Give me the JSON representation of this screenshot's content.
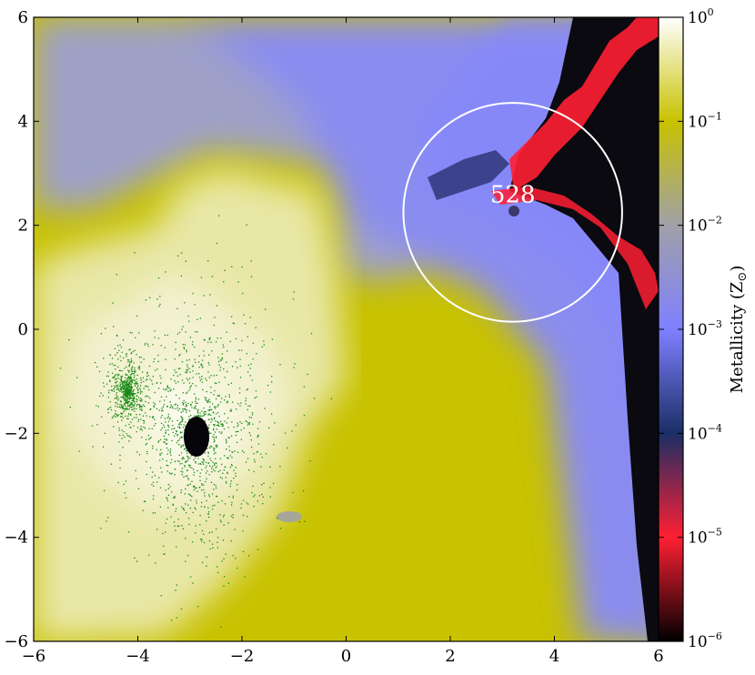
{
  "chart_data": {
    "type": "heatmap",
    "title": "",
    "xlabel": "",
    "ylabel": "",
    "xlim": [
      -6,
      6
    ],
    "ylim": [
      -6,
      6
    ],
    "x_ticks": [
      -6,
      -4,
      -2,
      0,
      2,
      4,
      6
    ],
    "y_ticks": [
      -6,
      -4,
      -2,
      0,
      2,
      4,
      6
    ],
    "x_tick_labels": [
      "−6",
      "−4",
      "−2",
      "0",
      "2",
      "4",
      "6"
    ],
    "y_tick_labels": [
      "−6",
      "−4",
      "−2",
      "0",
      "2",
      "4",
      "6"
    ],
    "colorbar": {
      "label": "Metallicity  (Z",
      "label_symbol": "⊙",
      "label_close": ")",
      "scale": "log",
      "range": [
        1e-06,
        1
      ],
      "tick_bases": [
        "10",
        "10",
        "10",
        "10",
        "10",
        "10",
        "10"
      ],
      "tick_exponents": [
        "0",
        "-1",
        "-2",
        "-3",
        "-4",
        "-5",
        "-6"
      ],
      "tick_values": [
        1,
        0.1,
        0.01,
        0.001,
        0.0001,
        1e-05,
        1e-06
      ],
      "colors": [
        "#000000",
        "#ff1f33",
        "#1a2e66",
        "#7f80ff",
        "#a0a0a8",
        "#c8c200",
        "#ffffff"
      ]
    },
    "annotation": {
      "text": "528",
      "x": 3.2,
      "y": 2.6
    },
    "halo_circle": {
      "center": [
        3.2,
        2.25
      ],
      "radius": 2.1
    },
    "star_clusters": [
      {
        "center": [
          -2.9,
          -2.0
        ],
        "spread": 0.9,
        "color": "#1a8a1a"
      },
      {
        "center": [
          -4.2,
          -1.2
        ],
        "spread": 0.35,
        "color": "#1a8a1a"
      }
    ]
  }
}
